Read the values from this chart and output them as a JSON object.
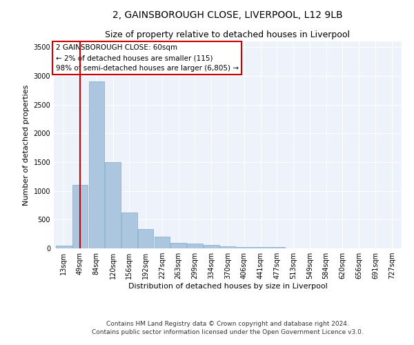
{
  "title1": "2, GAINSBOROUGH CLOSE, LIVERPOOL, L12 9LB",
  "title2": "Size of property relative to detached houses in Liverpool",
  "xlabel": "Distribution of detached houses by size in Liverpool",
  "ylabel": "Number of detached properties",
  "categories": [
    "13sqm",
    "49sqm",
    "84sqm",
    "120sqm",
    "156sqm",
    "192sqm",
    "227sqm",
    "263sqm",
    "299sqm",
    "334sqm",
    "370sqm",
    "406sqm",
    "441sqm",
    "477sqm",
    "513sqm",
    "549sqm",
    "584sqm",
    "620sqm",
    "656sqm",
    "691sqm",
    "727sqm"
  ],
  "values": [
    50,
    1100,
    2900,
    1500,
    630,
    340,
    210,
    100,
    90,
    60,
    40,
    25,
    20,
    20,
    5,
    3,
    2,
    1,
    1,
    0,
    0
  ],
  "bar_color": "#adc6e0",
  "bar_edge_color": "#7aaac8",
  "red_line_x": 1.0,
  "ylim": [
    0,
    3600
  ],
  "yticks": [
    0,
    500,
    1000,
    1500,
    2000,
    2500,
    3000,
    3500
  ],
  "annotation_text": "2 GAINSBOROUGH CLOSE: 60sqm\n← 2% of detached houses are smaller (115)\n98% of semi-detached houses are larger (6,805) →",
  "annotation_box_color": "#ffffff",
  "annotation_box_edge": "#cc0000",
  "footer1": "Contains HM Land Registry data © Crown copyright and database right 2024.",
  "footer2": "Contains public sector information licensed under the Open Government Licence v3.0.",
  "background_color": "#eef2fa",
  "grid_color": "#ffffff",
  "title1_fontsize": 10,
  "title2_fontsize": 9,
  "axis_label_fontsize": 8,
  "tick_fontsize": 7,
  "footer_fontsize": 6.5
}
